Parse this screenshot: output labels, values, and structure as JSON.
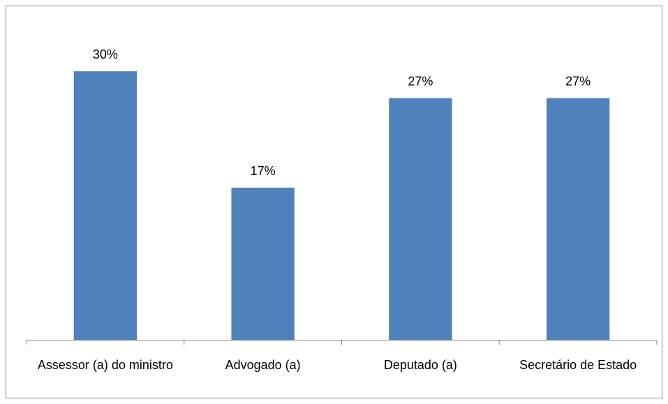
{
  "chart_data": {
    "type": "bar",
    "categories": [
      "Assessor (a) do ministro",
      "Advogado (a)",
      "Deputado (a)",
      "Secretário de Estado"
    ],
    "values": [
      30,
      17,
      27,
      27
    ],
    "value_labels": [
      "30%",
      "17%",
      "27%",
      "27%"
    ],
    "color": "#4f81bd",
    "ylim": [
      0,
      35
    ]
  }
}
